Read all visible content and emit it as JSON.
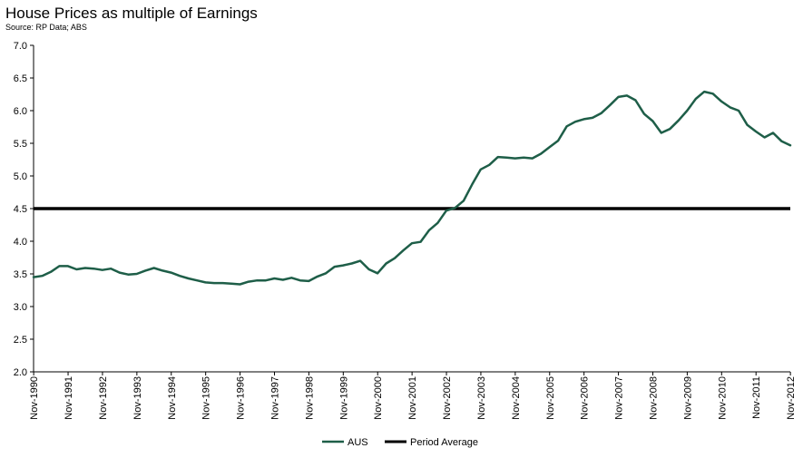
{
  "chart_data": {
    "type": "line",
    "title": "House Prices as multiple of Earnings",
    "subtitle": "Source: RP Data; ABS",
    "xlabel": "",
    "ylabel": "",
    "ylim": [
      2.0,
      7.0
    ],
    "yticks": [
      "2.0",
      "2.5",
      "3.0",
      "3.5",
      "4.0",
      "4.5",
      "5.0",
      "5.5",
      "6.0",
      "6.5",
      "7.0"
    ],
    "xlim": [
      1990.83,
      2012.83
    ],
    "xticks": [
      "Nov-1990",
      "Nov-1991",
      "Nov-1992",
      "Nov-1993",
      "Nov-1994",
      "Nov-1995",
      "Nov-1996",
      "Nov-1997",
      "Nov-1998",
      "Nov-1999",
      "Nov-2000",
      "Nov-2001",
      "Nov-2002",
      "Nov-2003",
      "Nov-2004",
      "Nov-2005",
      "Nov-2006",
      "Nov-2007",
      "Nov-2008",
      "Nov-2009",
      "Nov-2010",
      "Nov-2011",
      "Nov-2012"
    ],
    "grid": false,
    "legend_position": "bottom",
    "series": [
      {
        "name": "AUS",
        "color": "#1e5e48",
        "x": [
          1990.83,
          1991.08,
          1991.33,
          1991.58,
          1991.83,
          1992.08,
          1992.33,
          1992.58,
          1992.83,
          1993.08,
          1993.33,
          1993.58,
          1993.83,
          1994.08,
          1994.33,
          1994.58,
          1994.83,
          1995.08,
          1995.33,
          1995.58,
          1995.83,
          1996.08,
          1996.33,
          1996.58,
          1996.83,
          1997.08,
          1997.33,
          1997.58,
          1997.83,
          1998.08,
          1998.33,
          1998.58,
          1998.83,
          1999.08,
          1999.33,
          1999.58,
          1999.83,
          2000.08,
          2000.33,
          2000.58,
          2000.83,
          2001.08,
          2001.33,
          2001.58,
          2001.83,
          2002.08,
          2002.33,
          2002.58,
          2002.83,
          2003.08,
          2003.33,
          2003.58,
          2003.83,
          2004.08,
          2004.33,
          2004.58,
          2004.83,
          2005.08,
          2005.33,
          2005.58,
          2005.83,
          2006.08,
          2006.33,
          2006.58,
          2006.83,
          2007.08,
          2007.33,
          2007.58,
          2007.83,
          2008.08,
          2008.33,
          2008.58,
          2008.83,
          2009.08,
          2009.33,
          2009.58,
          2009.83,
          2010.08,
          2010.33,
          2010.58,
          2010.83,
          2011.08,
          2011.33,
          2011.58,
          2011.83,
          2012.08,
          2012.33,
          2012.58,
          2012.83
        ],
        "values": [
          3.45,
          3.47,
          3.53,
          3.62,
          3.62,
          3.57,
          3.59,
          3.58,
          3.56,
          3.58,
          3.52,
          3.49,
          3.5,
          3.55,
          3.59,
          3.55,
          3.52,
          3.47,
          3.43,
          3.4,
          3.37,
          3.36,
          3.36,
          3.35,
          3.34,
          3.38,
          3.4,
          3.4,
          3.43,
          3.41,
          3.44,
          3.4,
          3.39,
          3.46,
          3.51,
          3.61,
          3.63,
          3.66,
          3.7,
          3.57,
          3.51,
          3.66,
          3.74,
          3.86,
          3.97,
          3.99,
          4.17,
          4.28,
          4.47,
          4.51,
          4.62,
          4.87,
          5.1,
          5.17,
          5.29,
          5.28,
          5.27,
          5.28,
          5.27,
          5.34,
          5.44,
          5.54,
          5.76,
          5.83,
          5.87,
          5.89,
          5.96,
          6.08,
          6.21,
          6.23,
          6.16,
          5.95,
          5.84,
          5.66,
          5.72,
          5.85,
          6.0,
          6.18,
          6.29,
          6.26,
          6.14,
          6.05,
          6.0,
          5.78,
          5.68,
          5.59,
          5.66,
          5.53,
          5.47
        ]
      },
      {
        "name": "Period Average",
        "color": "#000000",
        "value": 4.5
      }
    ]
  }
}
